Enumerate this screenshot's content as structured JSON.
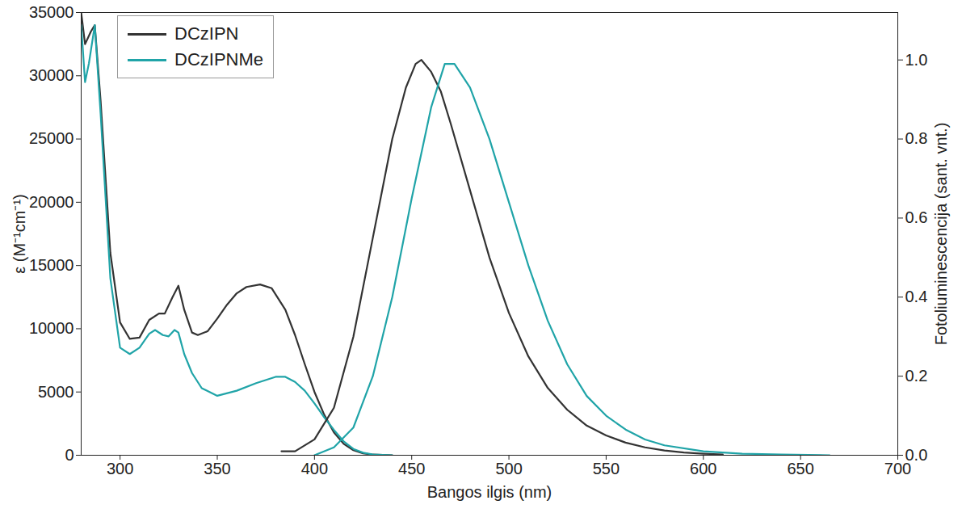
{
  "chart_data": {
    "type": "line",
    "x_label": "Bangos ilgis (nm)",
    "y_label": "ε (M⁻¹cm⁻¹)",
    "y2_label": "Fotoliuminescencija (sant. vnt.)",
    "xlim": [
      280,
      700
    ],
    "xticks": [
      300,
      350,
      400,
      450,
      500,
      550,
      600,
      650,
      700
    ],
    "ylim": [
      0,
      35000
    ],
    "yticks": [
      0,
      5000,
      10000,
      15000,
      20000,
      25000,
      30000,
      35000
    ],
    "y2lim": [
      0,
      1.12
    ],
    "y2ticks": [
      {
        "value": 0,
        "label": "0.0"
      },
      {
        "value": 0.2,
        "label": "0.2"
      },
      {
        "value": 0.4,
        "label": "0.4"
      },
      {
        "value": 0.6,
        "label": "0.6"
      },
      {
        "value": 0.8,
        "label": "0.8"
      },
      {
        "value": 1,
        "label": "1.0"
      }
    ],
    "legend": "top-left",
    "series": [
      {
        "name": "DCzIPN",
        "color": "#333333",
        "x": [
          280,
          282,
          285,
          287,
          290,
          295,
          300,
          305,
          310,
          315,
          320,
          323,
          327,
          330,
          333,
          337,
          340,
          345,
          350,
          355,
          360,
          365,
          372,
          378,
          385,
          390,
          395,
          400,
          405,
          410,
          415,
          420,
          425,
          430,
          440
        ],
        "values": [
          35000,
          32500,
          33500,
          34000,
          28000,
          16000,
          10500,
          9200,
          9300,
          10700,
          11200,
          11200,
          12500,
          13400,
          11500,
          9700,
          9500,
          9800,
          10800,
          11900,
          12800,
          13300,
          13500,
          13200,
          11500,
          9500,
          7200,
          5000,
          3200,
          1800,
          900,
          400,
          150,
          50,
          0
        ]
      },
      {
        "name": "DCzIPNMe",
        "color": "#20a4a8",
        "x": [
          280,
          282,
          284,
          287,
          290,
          295,
          300,
          305,
          310,
          315,
          318,
          322,
          325,
          328,
          330,
          333,
          337,
          342,
          350,
          360,
          370,
          380,
          385,
          390,
          395,
          400,
          405,
          410,
          415,
          420,
          425,
          430,
          440
        ],
        "values": [
          34000,
          29500,
          31000,
          34000,
          27000,
          14000,
          8500,
          8000,
          8500,
          9600,
          9900,
          9500,
          9400,
          9900,
          9700,
          8000,
          6500,
          5300,
          4700,
          5100,
          5700,
          6200,
          6200,
          5800,
          5100,
          4100,
          3000,
          2000,
          1100,
          500,
          200,
          60,
          0
        ]
      },
      {
        "name": "DCzIPN",
        "color": "#333333",
        "axis": "y2",
        "x": [
          383,
          390,
          400,
          410,
          420,
          430,
          440,
          447,
          452,
          455,
          460,
          465,
          470,
          480,
          490,
          500,
          510,
          520,
          530,
          540,
          550,
          560,
          570,
          580,
          590,
          600,
          610
        ],
        "values": [
          0.01,
          0.01,
          0.04,
          0.12,
          0.3,
          0.55,
          0.8,
          0.93,
          0.99,
          1.0,
          0.97,
          0.92,
          0.84,
          0.67,
          0.5,
          0.36,
          0.25,
          0.17,
          0.115,
          0.075,
          0.05,
          0.032,
          0.02,
          0.012,
          0.007,
          0.004,
          0.002
        ]
      },
      {
        "name": "DCzIPNMe",
        "color": "#20a4a8",
        "axis": "y2",
        "x": [
          400,
          410,
          420,
          430,
          440,
          450,
          460,
          467,
          472,
          480,
          490,
          500,
          510,
          520,
          530,
          540,
          550,
          560,
          570,
          580,
          600,
          620,
          640,
          665
        ],
        "values": [
          0.0,
          0.02,
          0.07,
          0.2,
          0.4,
          0.65,
          0.88,
          0.99,
          0.99,
          0.93,
          0.8,
          0.64,
          0.48,
          0.34,
          0.23,
          0.15,
          0.1,
          0.065,
          0.04,
          0.025,
          0.01,
          0.004,
          0.002,
          0.0
        ]
      }
    ]
  }
}
